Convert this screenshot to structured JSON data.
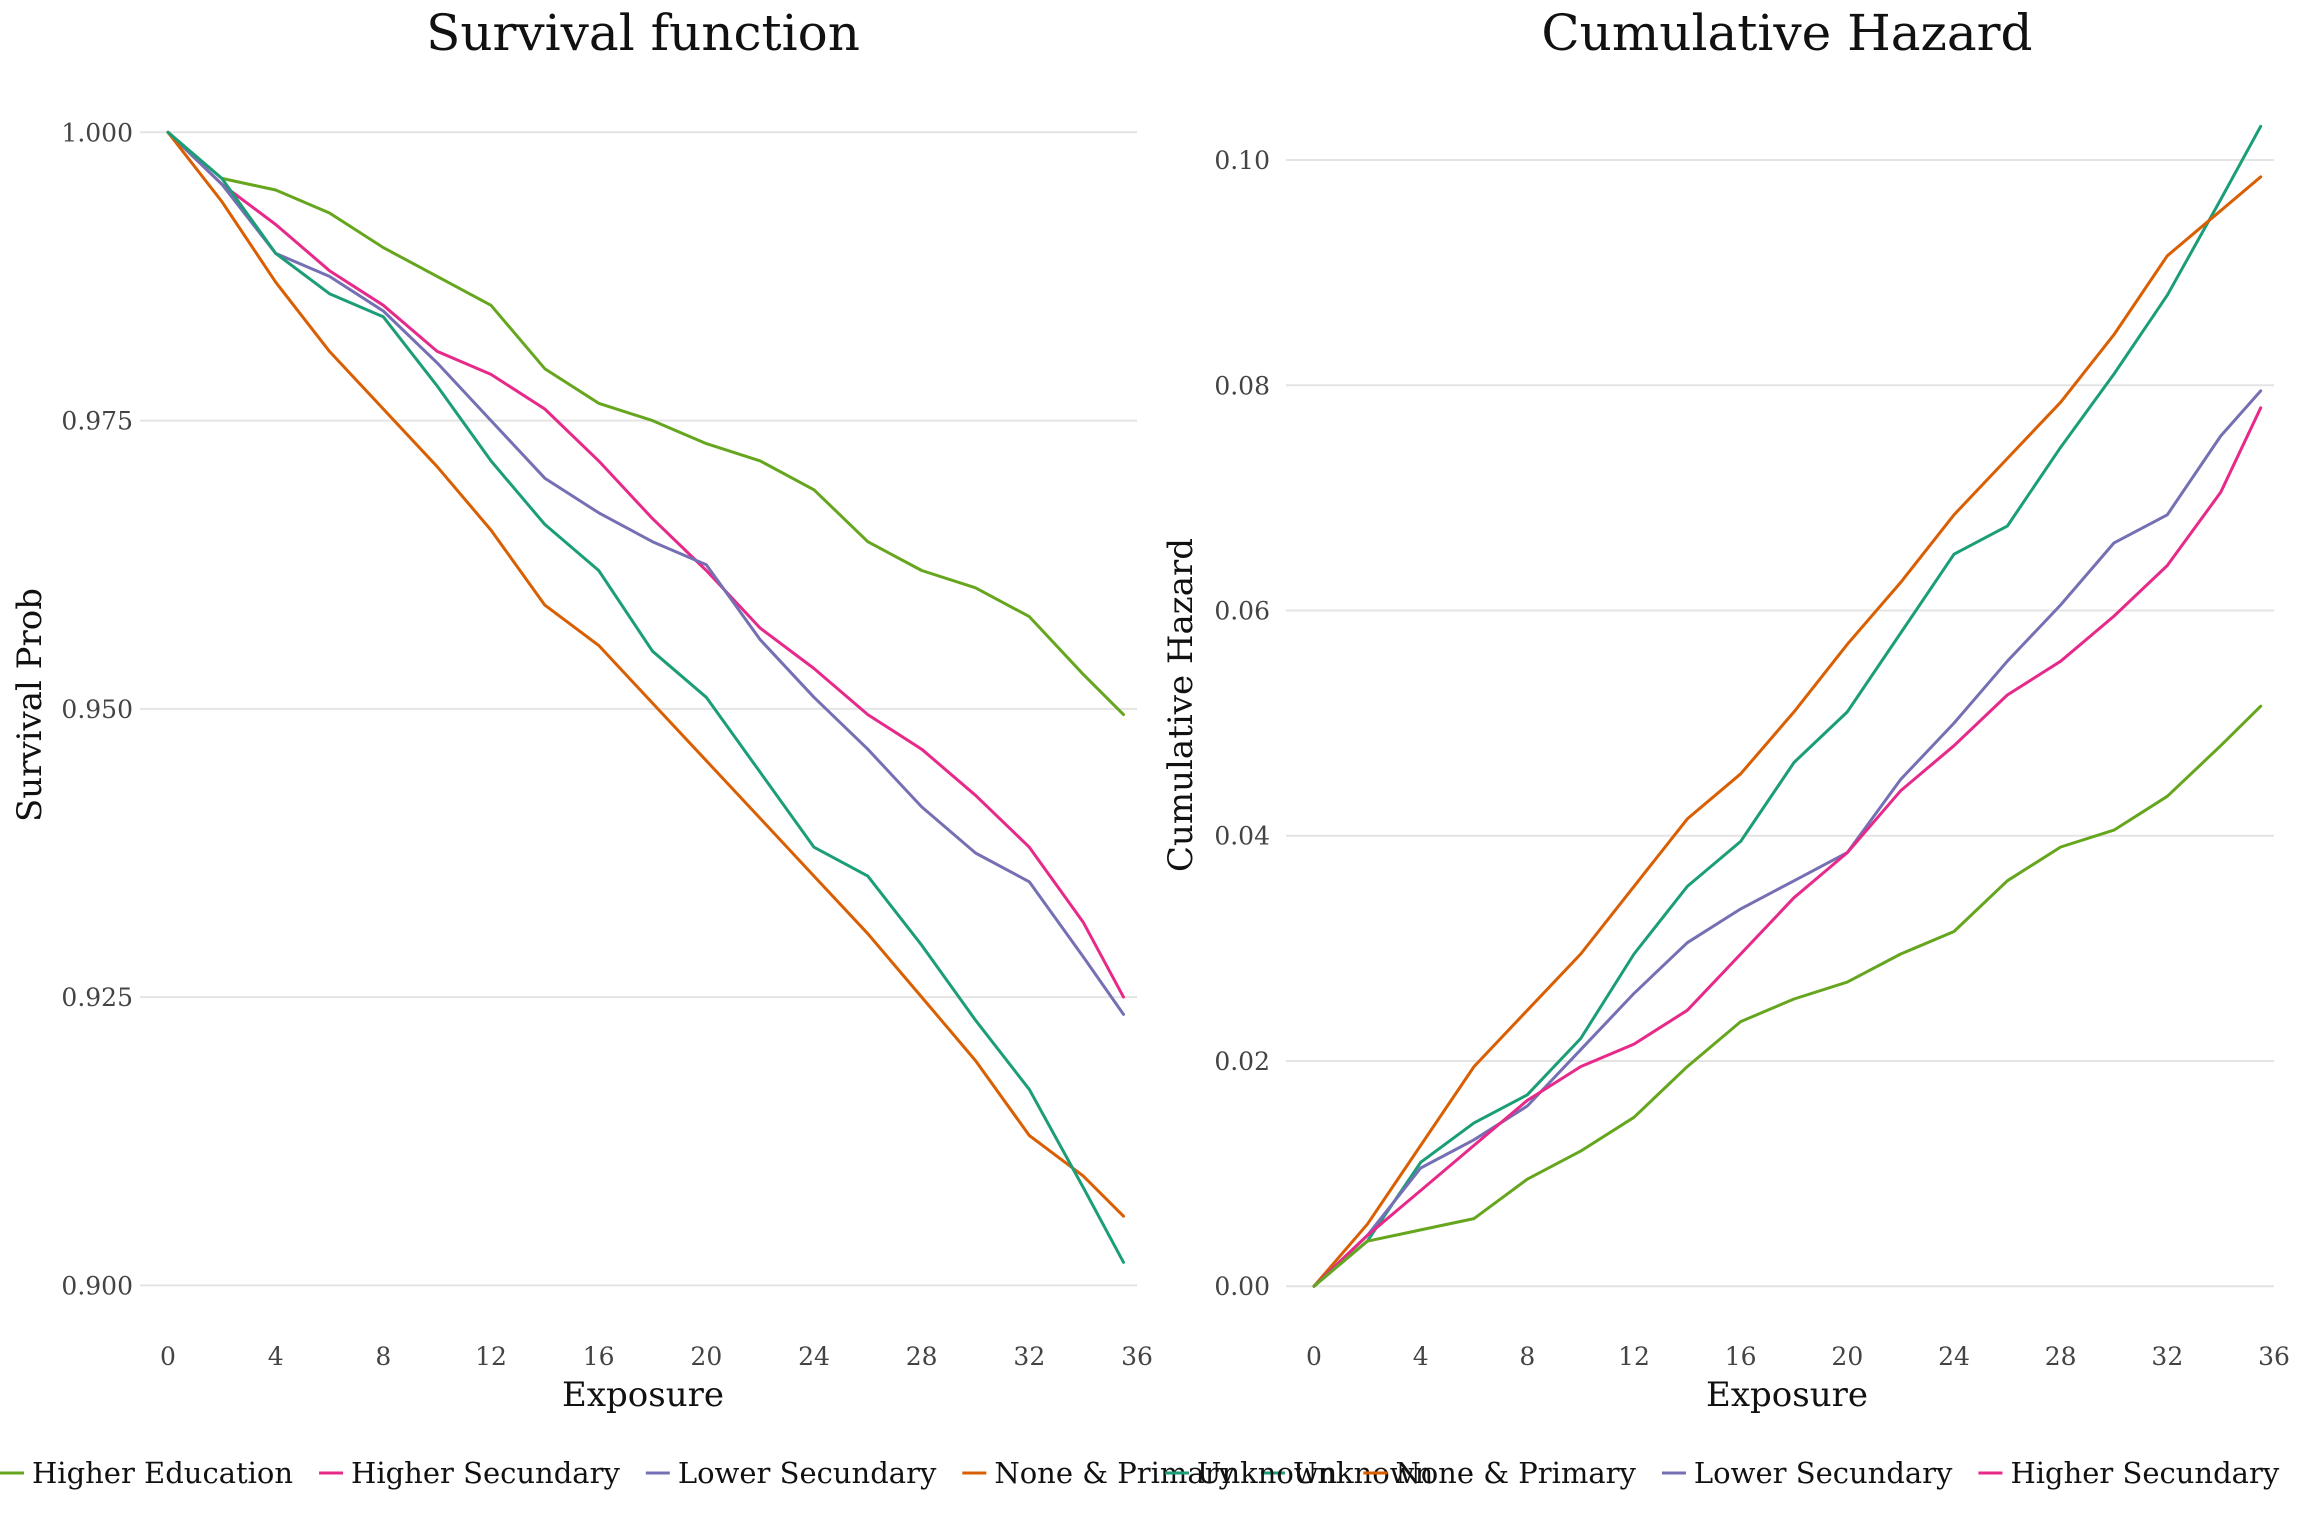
{
  "colors": {
    "Higher Education": "#66A61E",
    "Higher Secundary": "#E7298A",
    "Lower Secundary": "#7570B3",
    "None & Primary": "#D95F02",
    "Unknown": "#1B9E77"
  },
  "chart_data": [
    {
      "type": "line",
      "title": "Survival function",
      "xlabel": "Exposure",
      "ylabel": "Survival Prob",
      "xlim": [
        0,
        36
      ],
      "ylim": [
        0.897,
        1.0015
      ],
      "x_ticks": [
        0,
        4,
        8,
        12,
        16,
        20,
        24,
        28,
        32,
        36
      ],
      "y_ticks": [
        "0.900",
        "0.925",
        "0.950",
        "0.975",
        "1.000"
      ],
      "grid": "horizontal",
      "legend_position": "bottom",
      "legend": [
        "Higher Education",
        "Higher Secundary",
        "Lower Secundary",
        "None & Primary",
        "Unknown"
      ],
      "series": [
        {
          "name": "Higher Education",
          "x": [
            0,
            2,
            4,
            6,
            8,
            10,
            12,
            14,
            16,
            18,
            20,
            22,
            24,
            26,
            28,
            30,
            32,
            34,
            35.5
          ],
          "values": [
            1.0,
            0.996,
            0.995,
            0.993,
            0.99,
            0.9875,
            0.985,
            0.9795,
            0.9765,
            0.975,
            0.973,
            0.9715,
            0.969,
            0.9645,
            0.962,
            0.9605,
            0.958,
            0.953,
            0.9495
          ]
        },
        {
          "name": "Higher Secundary",
          "x": [
            0,
            2,
            4,
            6,
            8,
            10,
            12,
            14,
            16,
            18,
            20,
            22,
            24,
            26,
            28,
            30,
            32,
            34,
            35.5
          ],
          "values": [
            1.0,
            0.9955,
            0.992,
            0.988,
            0.985,
            0.981,
            0.979,
            0.976,
            0.9715,
            0.9665,
            0.962,
            0.957,
            0.9535,
            0.9495,
            0.9465,
            0.9425,
            0.938,
            0.9315,
            0.925
          ]
        },
        {
          "name": "Lower Secundary",
          "x": [
            0,
            2,
            4,
            6,
            8,
            10,
            12,
            14,
            16,
            18,
            20,
            22,
            24,
            26,
            28,
            30,
            32,
            34,
            35.5
          ],
          "values": [
            1.0,
            0.9955,
            0.9895,
            0.9875,
            0.9845,
            0.98,
            0.975,
            0.97,
            0.967,
            0.9645,
            0.9625,
            0.956,
            0.951,
            0.9465,
            0.9415,
            0.9375,
            0.935,
            0.9285,
            0.9235
          ]
        },
        {
          "name": "None & Primary",
          "x": [
            0,
            2,
            4,
            6,
            8,
            10,
            12,
            14,
            16,
            18,
            20,
            22,
            24,
            26,
            28,
            30,
            32,
            34,
            35.5
          ],
          "values": [
            1.0,
            0.994,
            0.987,
            0.981,
            0.976,
            0.971,
            0.9655,
            0.959,
            0.9555,
            0.9505,
            0.9455,
            0.9405,
            0.9355,
            0.9305,
            0.925,
            0.9195,
            0.913,
            0.9095,
            0.906
          ]
        },
        {
          "name": "Unknown",
          "x": [
            0,
            2,
            4,
            6,
            8,
            10,
            12,
            14,
            16,
            18,
            20,
            22,
            24,
            26,
            28,
            30,
            32,
            34,
            35.5
          ],
          "values": [
            1.0,
            0.996,
            0.9895,
            0.986,
            0.984,
            0.978,
            0.9715,
            0.966,
            0.962,
            0.955,
            0.951,
            0.9445,
            0.938,
            0.9355,
            0.9295,
            0.923,
            0.917,
            0.9085,
            0.902
          ]
        }
      ]
    },
    {
      "type": "line",
      "title": "Cumulative Hazard",
      "xlabel": "Exposure",
      "ylabel": "Cumulative Hazard",
      "xlim": [
        0,
        36
      ],
      "ylim": [
        -0.003,
        0.104
      ],
      "x_ticks": [
        0,
        4,
        8,
        12,
        16,
        20,
        24,
        28,
        32,
        36
      ],
      "y_ticks": [
        "0.00",
        "0.02",
        "0.04",
        "0.06",
        "0.08",
        "0.10"
      ],
      "grid": "horizontal",
      "legend_position": "bottom",
      "legend": [
        "Unknown",
        "None & Primary",
        "Lower Secundary",
        "Higher Secundary",
        "Higher Education"
      ],
      "series": [
        {
          "name": "Unknown",
          "x": [
            0,
            2,
            4,
            6,
            8,
            10,
            12,
            14,
            16,
            18,
            20,
            22,
            24,
            26,
            28,
            30,
            32,
            34,
            35.5
          ],
          "values": [
            0.0,
            0.004,
            0.011,
            0.0145,
            0.017,
            0.022,
            0.0295,
            0.0355,
            0.0395,
            0.0465,
            0.051,
            0.058,
            0.065,
            0.0675,
            0.0745,
            0.081,
            0.088,
            0.0965,
            0.103
          ]
        },
        {
          "name": "None & Primary",
          "x": [
            0,
            2,
            4,
            6,
            8,
            10,
            12,
            14,
            16,
            18,
            20,
            22,
            24,
            26,
            28,
            30,
            32,
            34,
            35.5
          ],
          "values": [
            0.0,
            0.0055,
            0.0125,
            0.0195,
            0.0245,
            0.0295,
            0.0355,
            0.0415,
            0.0455,
            0.051,
            0.057,
            0.0625,
            0.0685,
            0.0735,
            0.0785,
            0.0845,
            0.0915,
            0.0955,
            0.0985
          ]
        },
        {
          "name": "Lower Secundary",
          "x": [
            0,
            2,
            4,
            6,
            8,
            10,
            12,
            14,
            16,
            18,
            20,
            22,
            24,
            26,
            28,
            30,
            32,
            34,
            35.5
          ],
          "values": [
            0.0,
            0.0045,
            0.0105,
            0.013,
            0.016,
            0.021,
            0.026,
            0.0305,
            0.0335,
            0.036,
            0.0385,
            0.045,
            0.05,
            0.0555,
            0.0605,
            0.066,
            0.0685,
            0.0755,
            0.0795
          ]
        },
        {
          "name": "Higher Secundary",
          "x": [
            0,
            2,
            4,
            6,
            8,
            10,
            12,
            14,
            16,
            18,
            20,
            22,
            24,
            26,
            28,
            30,
            32,
            34,
            35.5
          ],
          "values": [
            0.0,
            0.0045,
            0.0085,
            0.0125,
            0.0165,
            0.0195,
            0.0215,
            0.0245,
            0.0295,
            0.0345,
            0.0385,
            0.044,
            0.048,
            0.0525,
            0.0555,
            0.0595,
            0.064,
            0.0705,
            0.078
          ]
        },
        {
          "name": "Higher Education",
          "x": [
            0,
            2,
            4,
            6,
            8,
            10,
            12,
            14,
            16,
            18,
            20,
            22,
            24,
            26,
            28,
            30,
            32,
            34,
            35.5
          ],
          "values": [
            0.0,
            0.004,
            0.005,
            0.006,
            0.0095,
            0.012,
            0.015,
            0.0195,
            0.0235,
            0.0255,
            0.027,
            0.0295,
            0.0315,
            0.036,
            0.039,
            0.0405,
            0.0435,
            0.048,
            0.0515
          ]
        }
      ]
    }
  ]
}
